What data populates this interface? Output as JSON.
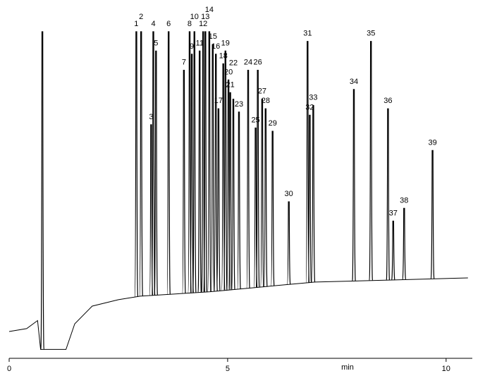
{
  "chart_data": {
    "type": "chromatogram",
    "xlabel": "min",
    "xlim": [
      0,
      10.6
    ],
    "xticks": [
      0,
      5,
      10
    ],
    "ylim": [
      0,
      100
    ],
    "color": "#000000",
    "baseline": {
      "x": [
        0,
        0.4,
        0.65,
        0.72,
        1.3,
        1.5,
        1.9,
        2.5,
        3.0,
        4.6,
        6.2,
        7.0,
        8.6,
        10.5
      ],
      "values": [
        6.6,
        7.5,
        10,
        1,
        1,
        9,
        14.5,
        16.5,
        17.6,
        19,
        21,
        22,
        22.6,
        23.3
      ]
    },
    "peaks": {
      "names": [
        null,
        "1",
        "2",
        "3",
        "4",
        "5",
        "6",
        "7",
        "8",
        "9",
        "10",
        "11",
        "12",
        "13",
        "14",
        "15",
        "16",
        "17",
        "18",
        "19",
        "20",
        "21",
        "22",
        "23",
        "24",
        "25",
        "26",
        "27",
        "28",
        "29",
        "30",
        "31",
        "32",
        "33",
        "34",
        "35",
        "36",
        "37",
        "38",
        "39"
      ],
      "x": [
        0.76,
        2.91,
        3.02,
        3.25,
        3.3,
        3.36,
        3.65,
        4.0,
        4.13,
        4.18,
        4.24,
        4.36,
        4.44,
        4.49,
        4.58,
        4.66,
        4.73,
        4.79,
        4.9,
        4.95,
        5.02,
        5.06,
        5.13,
        5.26,
        5.47,
        5.64,
        5.69,
        5.79,
        5.87,
        6.03,
        6.4,
        6.83,
        6.88,
        6.96,
        7.89,
        8.28,
        8.67,
        8.79,
        9.04,
        9.69
      ],
      "values": [
        100,
        100,
        100,
        71,
        100,
        94,
        100,
        88,
        100,
        93,
        100,
        94,
        100,
        100,
        100,
        96,
        93,
        76,
        90,
        94,
        85,
        81,
        79,
        75,
        88,
        70,
        88,
        79,
        76,
        69,
        47,
        97,
        74,
        77,
        82,
        97,
        76,
        41,
        45,
        63
      ]
    }
  }
}
